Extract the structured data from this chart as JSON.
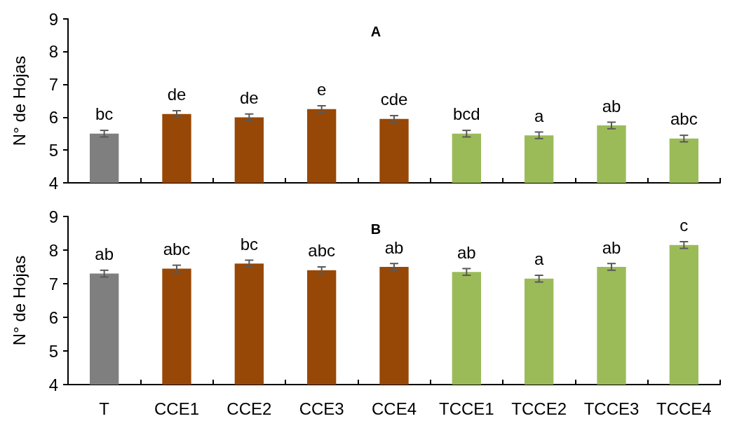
{
  "chart_data": [
    {
      "type": "bar",
      "title": "A",
      "ylabel": "N° de Hojas",
      "tick_labels": "y",
      "categories": [
        "T",
        "CCE1",
        "CCE2",
        "CCE3",
        "CCE4",
        "TCCE1",
        "TCCE2",
        "TCCE3",
        "TCCE4"
      ],
      "values": [
        5.5,
        6.1,
        6.0,
        6.25,
        5.95,
        5.5,
        5.45,
        5.75,
        5.35
      ],
      "errors": [
        0.1,
        0.1,
        0.1,
        0.1,
        0.1,
        0.1,
        0.1,
        0.1,
        0.1
      ],
      "colors": [
        "#7f7f7f",
        "#974806",
        "#974806",
        "#974806",
        "#974806",
        "#9bbb59",
        "#9bbb59",
        "#9bbb59",
        "#9bbb59"
      ],
      "ylim": [
        4,
        9
      ],
      "yticks": [
        4,
        5,
        6,
        7,
        8,
        9
      ],
      "annotations": [
        {
          "text": "bc",
          "x": "T",
          "y": 5.5
        },
        {
          "text": "de",
          "x": "CCE1",
          "y": 6.1
        },
        {
          "text": "de",
          "x": "CCE2",
          "y": 6.0
        },
        {
          "text": "e",
          "x": "CCE3",
          "y": 6.25
        },
        {
          "text": "cde",
          "x": "CCE4",
          "y": 5.95
        },
        {
          "text": "bcd",
          "x": "TCCE1",
          "y": 5.5
        },
        {
          "text": "a",
          "x": "TCCE2",
          "y": 5.45
        },
        {
          "text": "ab",
          "x": "TCCE3",
          "y": 5.75
        },
        {
          "text": "abc",
          "x": "TCCE4",
          "y": 5.35
        }
      ]
    },
    {
      "type": "bar",
      "title": "B",
      "ylabel": "N° de Hojas",
      "categories": [
        "T",
        "CCE1",
        "CCE2",
        "CCE3",
        "CCE4",
        "TCCE1",
        "TCCE2",
        "TCCE3",
        "TCCE4"
      ],
      "values": [
        7.3,
        7.45,
        7.6,
        7.4,
        7.5,
        7.35,
        7.15,
        7.5,
        8.15
      ],
      "errors": [
        0.1,
        0.1,
        0.1,
        0.1,
        0.1,
        0.1,
        0.1,
        0.1,
        0.1
      ],
      "colors": [
        "#7f7f7f",
        "#974806",
        "#974806",
        "#974806",
        "#974806",
        "#9bbb59",
        "#9bbb59",
        "#9bbb59",
        "#9bbb59"
      ],
      "ylim": [
        4,
        9
      ],
      "yticks": [
        4,
        5,
        6,
        7,
        8,
        9
      ],
      "annotations": [
        {
          "text": "ab",
          "x": "T",
          "y": 7.3
        },
        {
          "text": "abc",
          "x": "CCE1",
          "y": 7.45
        },
        {
          "text": "bc",
          "x": "CCE2",
          "y": 7.6
        },
        {
          "text": "abc",
          "x": "CCE3",
          "y": 7.4
        },
        {
          "text": "ab",
          "x": "CCE4",
          "y": 7.5
        },
        {
          "text": "ab",
          "x": "TCCE1",
          "y": 7.35
        },
        {
          "text": "a",
          "x": "TCCE2",
          "y": 7.15
        },
        {
          "text": "ab",
          "x": "TCCE3",
          "y": 7.5
        },
        {
          "text": "c",
          "x": "TCCE4",
          "y": 8.15
        }
      ]
    }
  ]
}
